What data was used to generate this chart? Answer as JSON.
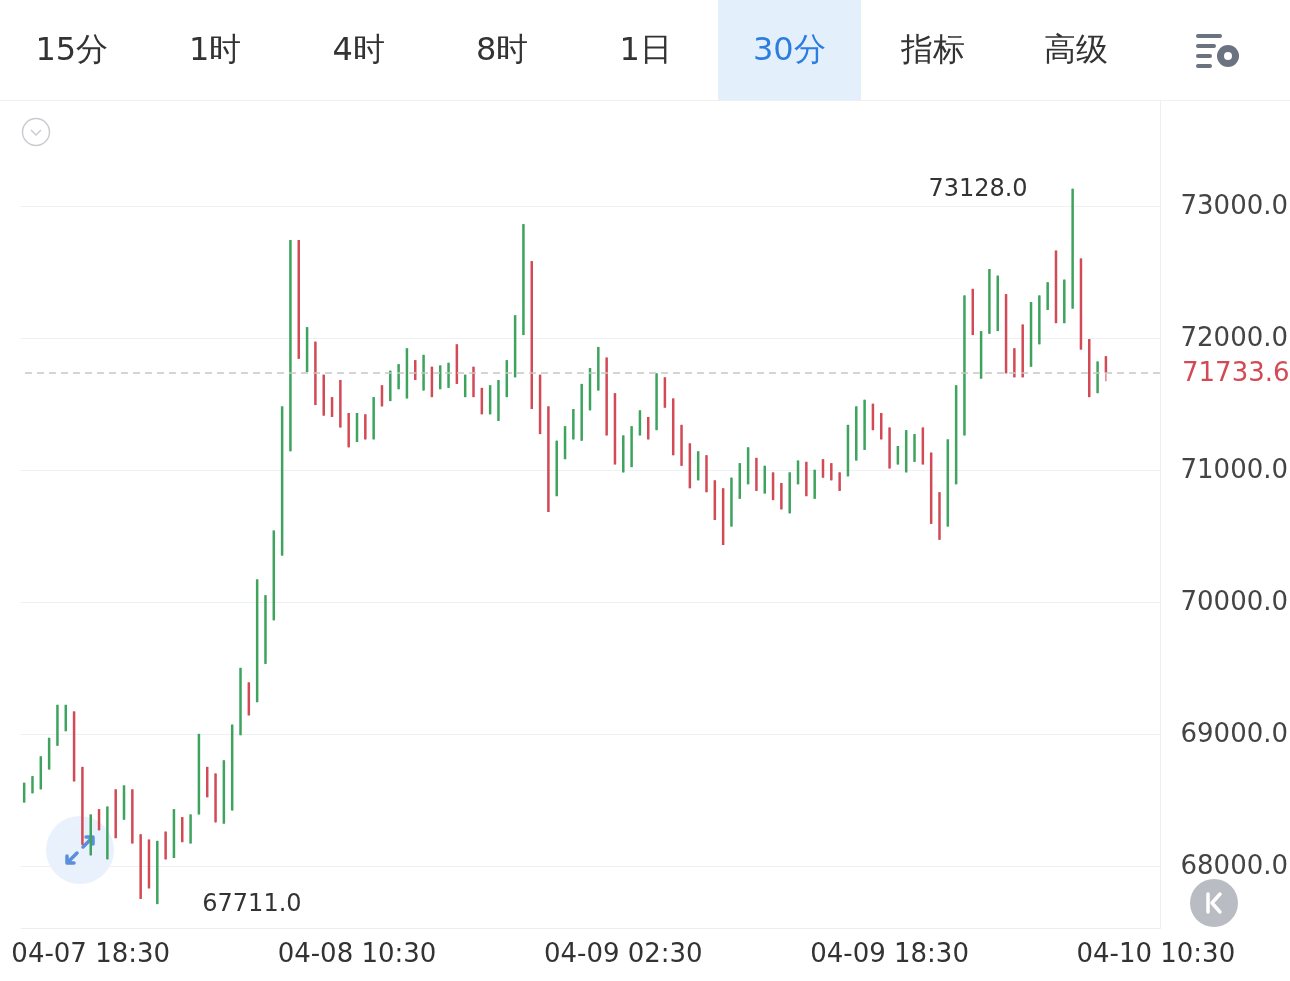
{
  "chart_data": {
    "type": "candlestick",
    "categories": [
      null,
      null,
      null,
      null,
      null,
      null,
      null,
      null,
      "04-07 18:30",
      null,
      null,
      null,
      null,
      null,
      null,
      null,
      null,
      null,
      null,
      null,
      null,
      null,
      null,
      null,
      null,
      null,
      null,
      null,
      null,
      null,
      null,
      null,
      null,
      null,
      null,
      null,
      null,
      null,
      null,
      null,
      "04-08 10:30",
      null,
      null,
      null,
      null,
      null,
      null,
      null,
      null,
      null,
      null,
      null,
      null,
      null,
      null,
      null,
      null,
      null,
      null,
      null,
      null,
      null,
      null,
      null,
      null,
      null,
      null,
      null,
      null,
      null,
      null,
      null,
      "04-09 02:30",
      null,
      null,
      null,
      null,
      null,
      null,
      null,
      null,
      null,
      null,
      null,
      null,
      null,
      null,
      null,
      null,
      null,
      null,
      null,
      null,
      null,
      null,
      null,
      null,
      null,
      null,
      null,
      null,
      null,
      null,
      null,
      "04-09 18:30",
      null,
      null,
      null,
      null,
      null,
      null,
      null,
      null,
      null,
      null,
      null,
      null,
      null,
      null,
      null,
      null,
      null,
      null,
      null,
      null,
      null,
      null,
      null,
      null,
      null,
      null,
      null,
      null,
      null,
      null,
      null,
      "04-10 10:30"
    ],
    "ohlc": [
      [
        68480,
        68630,
        68480,
        68630
      ],
      [
        68550,
        68680,
        68550,
        68680
      ],
      [
        68580,
        68830,
        68580,
        68830
      ],
      [
        68730,
        68970,
        68730,
        68970
      ],
      [
        68910,
        69220,
        68910,
        69220
      ],
      [
        69020,
        69220,
        69020,
        69220
      ],
      [
        69170,
        69170,
        68640,
        68640
      ],
      [
        68750,
        68750,
        68160,
        68160
      ],
      [
        68080,
        68390,
        68080,
        68390
      ],
      [
        68430,
        68430,
        68270,
        68270
      ],
      [
        68050,
        68450,
        68050,
        68450
      ],
      [
        68580,
        68580,
        68210,
        68210
      ],
      [
        68350,
        68610,
        68350,
        68610
      ],
      [
        68580,
        68580,
        68170,
        68170
      ],
      [
        68240,
        68240,
        67750,
        67750
      ],
      [
        68200,
        68200,
        67830,
        67830
      ],
      [
        67711,
        68190,
        67711,
        68190
      ],
      [
        68260,
        68260,
        68050,
        68050
      ],
      [
        68060,
        68430,
        68060,
        68430
      ],
      [
        68370,
        68370,
        68180,
        68180
      ],
      [
        68170,
        68390,
        68170,
        68390
      ],
      [
        68390,
        69000,
        68390,
        69000
      ],
      [
        68750,
        68750,
        68520,
        68520
      ],
      [
        68700,
        68700,
        68330,
        68330
      ],
      [
        68320,
        68800,
        68320,
        68800
      ],
      [
        68420,
        69070,
        68420,
        69070
      ],
      [
        68990,
        69500,
        68990,
        69500
      ],
      [
        69390,
        69390,
        69140,
        69140
      ],
      [
        69240,
        70170,
        69240,
        70170
      ],
      [
        69530,
        70050,
        69530,
        70050
      ],
      [
        69860,
        70540,
        69860,
        70540
      ],
      [
        70350,
        71480,
        70350,
        71480
      ],
      [
        71140,
        72740,
        71140,
        72740
      ],
      [
        72740,
        72740,
        71840,
        71840
      ],
      [
        71740,
        72080,
        71740,
        72080
      ],
      [
        71970,
        71970,
        71490,
        71490
      ],
      [
        71720,
        71720,
        71410,
        71410
      ],
      [
        71550,
        71550,
        71400,
        71400
      ],
      [
        71680,
        71680,
        71320,
        71320
      ],
      [
        71430,
        71430,
        71170,
        71170
      ],
      [
        71210,
        71430,
        71210,
        71430
      ],
      [
        71420,
        71420,
        71230,
        71230
      ],
      [
        71230,
        71550,
        71230,
        71550
      ],
      [
        71640,
        71640,
        71480,
        71480
      ],
      [
        71520,
        71750,
        71520,
        71750
      ],
      [
        71610,
        71800,
        71610,
        71800
      ],
      [
        71540,
        71920,
        71540,
        71920
      ],
      [
        71830,
        71830,
        71680,
        71680
      ],
      [
        71600,
        71870,
        71600,
        71870
      ],
      [
        71780,
        71780,
        71550,
        71550
      ],
      [
        71610,
        71790,
        71610,
        71790
      ],
      [
        71620,
        71810,
        71620,
        71810
      ],
      [
        71950,
        71950,
        71650,
        71650
      ],
      [
        71550,
        71720,
        71550,
        71720
      ],
      [
        71780,
        71780,
        71550,
        71550
      ],
      [
        71620,
        71620,
        71420,
        71420
      ],
      [
        71420,
        71640,
        71420,
        71640
      ],
      [
        71370,
        71680,
        71370,
        71680
      ],
      [
        71550,
        71830,
        71550,
        71830
      ],
      [
        71700,
        72170,
        71700,
        72170
      ],
      [
        72020,
        72860,
        72020,
        72860
      ],
      [
        72580,
        72580,
        71460,
        71460
      ],
      [
        71720,
        71720,
        71270,
        71270
      ],
      [
        71480,
        71480,
        70680,
        70680
      ],
      [
        70800,
        71220,
        70800,
        71220
      ],
      [
        71080,
        71330,
        71080,
        71330
      ],
      [
        71230,
        71460,
        71230,
        71460
      ],
      [
        71220,
        71650,
        71220,
        71650
      ],
      [
        71450,
        71770,
        71450,
        71770
      ],
      [
        71600,
        71930,
        71600,
        71930
      ],
      [
        71850,
        71850,
        71260,
        71260
      ],
      [
        71580,
        71580,
        71040,
        71040
      ],
      [
        70980,
        71260,
        70980,
        71260
      ],
      [
        71020,
        71330,
        71020,
        71330
      ],
      [
        71260,
        71450,
        71260,
        71450
      ],
      [
        71400,
        71400,
        71230,
        71230
      ],
      [
        71300,
        71730,
        71300,
        71730
      ],
      [
        71700,
        71700,
        71470,
        71470
      ],
      [
        71540,
        71540,
        71110,
        71110
      ],
      [
        71340,
        71340,
        71030,
        71030
      ],
      [
        71200,
        71200,
        70860,
        70860
      ],
      [
        70920,
        71140,
        70920,
        71140
      ],
      [
        71110,
        71110,
        70830,
        70830
      ],
      [
        70920,
        70920,
        70620,
        70620
      ],
      [
        70860,
        70860,
        70430,
        70430
      ],
      [
        70570,
        70940,
        70570,
        70940
      ],
      [
        70780,
        71050,
        70780,
        71050
      ],
      [
        70890,
        71170,
        70890,
        71170
      ],
      [
        71090,
        71090,
        70840,
        70840
      ],
      [
        70820,
        71030,
        70820,
        71030
      ],
      [
        70980,
        70980,
        70770,
        70770
      ],
      [
        70900,
        70900,
        70700,
        70700
      ],
      [
        70670,
        70980,
        70670,
        70980
      ],
      [
        70890,
        71070,
        70890,
        71070
      ],
      [
        71060,
        71060,
        70800,
        70800
      ],
      [
        70780,
        71000,
        70780,
        71000
      ],
      [
        71080,
        71080,
        70940,
        70940
      ],
      [
        71050,
        71050,
        70920,
        70920
      ],
      [
        70980,
        70980,
        70840,
        70840
      ],
      [
        70950,
        71340,
        70950,
        71340
      ],
      [
        71070,
        71480,
        71070,
        71480
      ],
      [
        71150,
        71530,
        71150,
        71530
      ],
      [
        71500,
        71500,
        71300,
        71300
      ],
      [
        71430,
        71430,
        71230,
        71230
      ],
      [
        71320,
        71320,
        71010,
        71010
      ],
      [
        71040,
        71180,
        71040,
        71180
      ],
      [
        70980,
        71300,
        70980,
        71300
      ],
      [
        71060,
        71270,
        71060,
        71270
      ],
      [
        71320,
        71320,
        71040,
        71040
      ],
      [
        71130,
        71130,
        70590,
        70590
      ],
      [
        70830,
        70830,
        70470,
        70470
      ],
      [
        70570,
        71230,
        70570,
        71230
      ],
      [
        70890,
        71640,
        70890,
        71640
      ],
      [
        71260,
        72320,
        71260,
        72320
      ],
      [
        72370,
        72370,
        72020,
        72020
      ],
      [
        71690,
        72050,
        71690,
        72050
      ],
      [
        72030,
        72520,
        72030,
        72520
      ],
      [
        72050,
        72470,
        72050,
        72470
      ],
      [
        72330,
        72330,
        71730,
        71730
      ],
      [
        71920,
        71920,
        71700,
        71700
      ],
      [
        72100,
        72100,
        71700,
        71700
      ],
      [
        71780,
        72270,
        71780,
        72270
      ],
      [
        71950,
        72320,
        71950,
        72320
      ],
      [
        72210,
        72420,
        72210,
        72420
      ],
      [
        72660,
        72660,
        72110,
        72110
      ],
      [
        72110,
        72440,
        72110,
        72440
      ],
      [
        72220,
        73128,
        72220,
        73128
      ],
      [
        72600,
        72600,
        71910,
        71910
      ],
      [
        71990,
        71990,
        71550,
        71550
      ],
      [
        71580,
        71820,
        71580,
        71820
      ],
      [
        71860,
        71860,
        71670,
        71733.6
      ],
      null,
      null,
      null,
      null,
      null,
      null
    ],
    "colors": [
      "#3da35d",
      "#3da35d",
      "#3da35d",
      "#3da35d",
      "#3da35d",
      "#3da35d",
      "#d24a55",
      "#d24a55",
      "#3da35d",
      "#d24a55",
      "#3da35d",
      "#d24a55",
      "#3da35d",
      "#d24a55",
      "#d24a55",
      "#d24a55",
      "#3da35d",
      "#d24a55",
      "#3da35d",
      "#d24a55",
      "#3da35d",
      "#3da35d",
      "#d24a55",
      "#d24a55",
      "#3da35d",
      "#3da35d",
      "#3da35d",
      "#d24a55",
      "#3da35d",
      "#3da35d",
      "#3da35d",
      "#3da35d",
      "#3da35d",
      "#d24a55",
      "#3da35d",
      "#d24a55",
      "#d24a55",
      "#d24a55",
      "#d24a55",
      "#d24a55",
      "#3da35d",
      "#d24a55",
      "#3da35d",
      "#d24a55",
      "#3da35d",
      "#3da35d",
      "#3da35d",
      "#d24a55",
      "#3da35d",
      "#d24a55",
      "#3da35d",
      "#3da35d",
      "#d24a55",
      "#3da35d",
      "#d24a55",
      "#d24a55",
      "#3da35d",
      "#3da35d",
      "#3da35d",
      "#3da35d",
      "#3da35d",
      "#d24a55",
      "#d24a55",
      "#d24a55",
      "#3da35d",
      "#3da35d",
      "#3da35d",
      "#3da35d",
      "#3da35d",
      "#3da35d",
      "#d24a55",
      "#d24a55",
      "#3da35d",
      "#3da35d",
      "#3da35d",
      "#d24a55",
      "#3da35d",
      "#d24a55",
      "#d24a55",
      "#d24a55",
      "#d24a55",
      "#3da35d",
      "#d24a55",
      "#d24a55",
      "#d24a55",
      "#3da35d",
      "#3da35d",
      "#3da35d",
      "#d24a55",
      "#3da35d",
      "#d24a55",
      "#d24a55",
      "#3da35d",
      "#3da35d",
      "#d24a55",
      "#3da35d",
      "#d24a55",
      "#d24a55",
      "#d24a55",
      "#3da35d",
      "#3da35d",
      "#3da35d",
      "#d24a55",
      "#d24a55",
      "#d24a55",
      "#3da35d",
      "#3da35d",
      "#3da35d",
      "#d24a55",
      "#d24a55",
      "#d24a55",
      "#3da35d",
      "#3da35d",
      "#3da35d",
      "#d24a55",
      "#3da35d",
      "#3da35d",
      "#3da35d",
      "#d24a55",
      "#d24a55",
      "#d24a55",
      "#3da35d",
      "#3da35d",
      "#3da35d",
      "#d24a55",
      "#3da35d",
      "#3da35d",
      "#d24a55",
      "#d24a55",
      "#3da35d",
      "#d24a55",
      null,
      null,
      null,
      null,
      null,
      null
    ],
    "ylim": [
      67530,
      73800
    ],
    "yticks": [
      {
        "value": 68000,
        "label": "68000.0"
      },
      {
        "value": 69000,
        "label": "69000.0"
      },
      {
        "value": 70000,
        "label": "70000.0"
      },
      {
        "value": 71000,
        "label": "71000.0"
      },
      {
        "value": 72000,
        "label": "72000.0"
      },
      {
        "value": 73000,
        "label": "73000.0"
      }
    ],
    "grid": "y",
    "ref_lines": [
      {
        "axis": "y",
        "value": 71733.6,
        "label": "71733.6",
        "color": "#c8c8c8",
        "line_style": "dashed"
      }
    ],
    "annotations": [
      "15分",
      "1时",
      "4时",
      "8时",
      "1日",
      "30分",
      "指标",
      "高级",
      "73128.0",
      "67711.0"
    ]
  }
}
